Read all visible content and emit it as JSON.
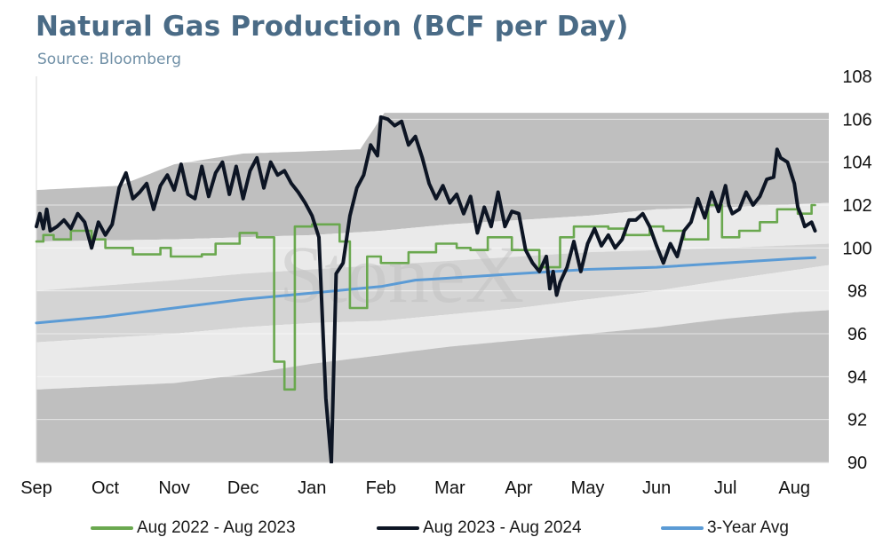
{
  "title": "Natural Gas Production (BCF per Day)",
  "subtitle": "Source: Bloomberg",
  "watermark": "StoneX",
  "colors": {
    "band_dark": "#a9a9a9",
    "band_mid": "#d4d4d4",
    "band_light": "#eaeaea",
    "series_2022": "#6aa84f",
    "series_2023": "#0d1524",
    "series_avg": "#5b9bd5"
  },
  "chart_data": {
    "type": "line",
    "title": "Natural Gas Production (BCF per Day)",
    "subtitle": "Source: Bloomberg",
    "xlabel": "",
    "ylabel": "",
    "x_range": [
      0,
      11.5
    ],
    "ylim": [
      90,
      108
    ],
    "y_ticks": [
      90,
      92,
      94,
      96,
      98,
      100,
      102,
      104,
      106,
      108
    ],
    "y_axis_side": "right",
    "x_ticks": [
      {
        "label": "Sep",
        "x": 0
      },
      {
        "label": "Oct",
        "x": 1
      },
      {
        "label": "Nov",
        "x": 2
      },
      {
        "label": "Dec",
        "x": 3
      },
      {
        "label": "Jan",
        "x": 4
      },
      {
        "label": "Feb",
        "x": 5
      },
      {
        "label": "Mar",
        "x": 6
      },
      {
        "label": "Apr",
        "x": 7
      },
      {
        "label": "May",
        "x": 8
      },
      {
        "label": "Jun",
        "x": 9
      },
      {
        "label": "Jul",
        "x": 10
      },
      {
        "label": "Aug",
        "x": 11
      }
    ],
    "grid": "horizontal",
    "legend_position": "bottom",
    "bands": {
      "note": "shaded 5-year range bands (max / upper / lower / min)",
      "max": [
        [
          0,
          102.7
        ],
        [
          1.2,
          102.9
        ],
        [
          2,
          103.9
        ],
        [
          3,
          104.4
        ],
        [
          3.9,
          104.5
        ],
        [
          4.7,
          104.6
        ],
        [
          5.05,
          106.3
        ],
        [
          11.5,
          106.3
        ]
      ],
      "upper": [
        [
          0,
          100.3
        ],
        [
          2,
          100.4
        ],
        [
          3,
          100.5
        ],
        [
          4,
          100.6
        ],
        [
          5,
          100.8
        ],
        [
          6,
          101.1
        ],
        [
          7,
          101.3
        ],
        [
          8,
          101.5
        ],
        [
          9,
          101.8
        ],
        [
          10,
          101.9
        ],
        [
          11.5,
          102.1
        ]
      ],
      "lower": [
        [
          0,
          98.0
        ],
        [
          2,
          98.5
        ],
        [
          3,
          98.8
        ],
        [
          4,
          99.0
        ],
        [
          5,
          99.2
        ],
        [
          6,
          99.4
        ],
        [
          7,
          99.6
        ],
        [
          8,
          99.8
        ],
        [
          9,
          99.9
        ],
        [
          10,
          100.0
        ],
        [
          11.5,
          100.2
        ]
      ],
      "inner_low": [
        [
          0,
          95.6
        ],
        [
          2,
          96.0
        ],
        [
          3,
          96.3
        ],
        [
          4,
          96.5
        ],
        [
          5,
          96.6
        ],
        [
          6,
          96.9
        ],
        [
          7,
          97.2
        ],
        [
          8,
          97.6
        ],
        [
          9,
          98.0
        ],
        [
          10,
          98.5
        ],
        [
          11.5,
          99.2
        ]
      ],
      "min": [
        [
          0,
          93.4
        ],
        [
          2,
          93.7
        ],
        [
          3,
          94.1
        ],
        [
          4,
          94.6
        ],
        [
          5,
          95.0
        ],
        [
          6,
          95.4
        ],
        [
          7,
          95.7
        ],
        [
          8,
          96.0
        ],
        [
          9,
          96.3
        ],
        [
          10,
          96.7
        ],
        [
          11,
          97.0
        ],
        [
          11.5,
          97.1
        ]
      ]
    },
    "series": [
      {
        "name": "Aug 2022 - Aug 2023",
        "step": true,
        "points": [
          [
            0,
            100.3
          ],
          [
            0.1,
            100.3
          ],
          [
            0.1,
            100.6
          ],
          [
            0.25,
            100.6
          ],
          [
            0.25,
            100.4
          ],
          [
            0.5,
            100.4
          ],
          [
            0.5,
            100.8
          ],
          [
            0.8,
            100.8
          ],
          [
            0.8,
            100.4
          ],
          [
            1.0,
            100.4
          ],
          [
            1.0,
            100.0
          ],
          [
            1.4,
            100.0
          ],
          [
            1.4,
            99.7
          ],
          [
            1.8,
            99.7
          ],
          [
            1.8,
            100.0
          ],
          [
            1.95,
            100.0
          ],
          [
            1.95,
            99.6
          ],
          [
            2.4,
            99.6
          ],
          [
            2.4,
            99.7
          ],
          [
            2.6,
            99.7
          ],
          [
            2.6,
            100.2
          ],
          [
            2.95,
            100.2
          ],
          [
            2.95,
            100.7
          ],
          [
            3.2,
            100.7
          ],
          [
            3.2,
            100.5
          ],
          [
            3.45,
            100.5
          ],
          [
            3.45,
            94.7
          ],
          [
            3.6,
            94.7
          ],
          [
            3.6,
            93.4
          ],
          [
            3.75,
            93.4
          ],
          [
            3.75,
            101.0
          ],
          [
            4.0,
            101.0
          ],
          [
            4.0,
            101.1
          ],
          [
            4.4,
            101.1
          ],
          [
            4.4,
            100.3
          ],
          [
            4.55,
            100.3
          ],
          [
            4.55,
            97.2
          ],
          [
            4.8,
            97.2
          ],
          [
            4.8,
            99.6
          ],
          [
            5.0,
            99.6
          ],
          [
            5.0,
            99.3
          ],
          [
            5.4,
            99.3
          ],
          [
            5.4,
            99.8
          ],
          [
            5.8,
            99.8
          ],
          [
            5.8,
            100.2
          ],
          [
            6.1,
            100.2
          ],
          [
            6.1,
            100.0
          ],
          [
            6.3,
            100.0
          ],
          [
            6.3,
            99.9
          ],
          [
            6.55,
            99.9
          ],
          [
            6.55,
            100.5
          ],
          [
            6.9,
            100.5
          ],
          [
            6.9,
            99.9
          ],
          [
            7.3,
            99.9
          ],
          [
            7.3,
            99.1
          ],
          [
            7.6,
            99.1
          ],
          [
            7.6,
            100.5
          ],
          [
            7.8,
            100.5
          ],
          [
            7.8,
            101.0
          ],
          [
            8.3,
            101.0
          ],
          [
            8.3,
            100.9
          ],
          [
            8.55,
            100.9
          ],
          [
            8.55,
            100.6
          ],
          [
            8.9,
            100.6
          ],
          [
            8.9,
            101.0
          ],
          [
            9.1,
            101.0
          ],
          [
            9.1,
            100.8
          ],
          [
            9.4,
            100.8
          ],
          [
            9.4,
            100.4
          ],
          [
            9.75,
            100.4
          ],
          [
            9.75,
            102.0
          ],
          [
            9.95,
            102.0
          ],
          [
            9.95,
            100.5
          ],
          [
            10.2,
            100.5
          ],
          [
            10.2,
            100.8
          ],
          [
            10.5,
            100.8
          ],
          [
            10.5,
            101.2
          ],
          [
            10.75,
            101.2
          ],
          [
            10.75,
            101.8
          ],
          [
            11.05,
            101.8
          ],
          [
            11.05,
            101.6
          ],
          [
            11.25,
            101.6
          ],
          [
            11.25,
            102.0
          ],
          [
            11.3,
            102.0
          ]
        ]
      },
      {
        "name": "Aug 2023 - Aug 2024",
        "step": false,
        "points": [
          [
            0,
            101.0
          ],
          [
            0.05,
            101.6
          ],
          [
            0.1,
            100.9
          ],
          [
            0.15,
            101.8
          ],
          [
            0.2,
            100.8
          ],
          [
            0.3,
            101.0
          ],
          [
            0.4,
            101.3
          ],
          [
            0.5,
            100.9
          ],
          [
            0.6,
            101.6
          ],
          [
            0.7,
            101.2
          ],
          [
            0.8,
            100.0
          ],
          [
            0.9,
            101.2
          ],
          [
            1.0,
            100.6
          ],
          [
            1.1,
            101.1
          ],
          [
            1.2,
            102.8
          ],
          [
            1.3,
            103.5
          ],
          [
            1.4,
            102.3
          ],
          [
            1.5,
            102.6
          ],
          [
            1.6,
            103.0
          ],
          [
            1.7,
            101.8
          ],
          [
            1.8,
            102.9
          ],
          [
            1.9,
            103.4
          ],
          [
            2.0,
            102.7
          ],
          [
            2.1,
            103.9
          ],
          [
            2.2,
            102.5
          ],
          [
            2.3,
            102.3
          ],
          [
            2.4,
            103.8
          ],
          [
            2.5,
            102.4
          ],
          [
            2.6,
            103.5
          ],
          [
            2.7,
            104.0
          ],
          [
            2.8,
            102.5
          ],
          [
            2.9,
            103.8
          ],
          [
            3.0,
            102.3
          ],
          [
            3.1,
            103.6
          ],
          [
            3.2,
            104.2
          ],
          [
            3.3,
            102.8
          ],
          [
            3.4,
            104.0
          ],
          [
            3.5,
            103.4
          ],
          [
            3.6,
            103.6
          ],
          [
            3.7,
            103.0
          ],
          [
            3.8,
            102.6
          ],
          [
            3.9,
            102.1
          ],
          [
            4.0,
            101.5
          ],
          [
            4.1,
            100.5
          ],
          [
            4.2,
            93.0
          ],
          [
            4.28,
            90.0
          ],
          [
            4.35,
            98.8
          ],
          [
            4.45,
            99.3
          ],
          [
            4.55,
            101.5
          ],
          [
            4.65,
            102.8
          ],
          [
            4.75,
            103.4
          ],
          [
            4.85,
            104.8
          ],
          [
            4.95,
            104.3
          ],
          [
            5.0,
            106.1
          ],
          [
            5.1,
            106.0
          ],
          [
            5.2,
            105.7
          ],
          [
            5.3,
            105.9
          ],
          [
            5.4,
            104.8
          ],
          [
            5.5,
            105.2
          ],
          [
            5.6,
            104.2
          ],
          [
            5.7,
            103.0
          ],
          [
            5.8,
            102.3
          ],
          [
            5.9,
            102.9
          ],
          [
            6.0,
            102.1
          ],
          [
            6.1,
            102.5
          ],
          [
            6.2,
            101.6
          ],
          [
            6.3,
            102.4
          ],
          [
            6.4,
            100.7
          ],
          [
            6.5,
            101.9
          ],
          [
            6.6,
            101.0
          ],
          [
            6.7,
            102.6
          ],
          [
            6.8,
            101.0
          ],
          [
            6.9,
            101.7
          ],
          [
            7.0,
            101.6
          ],
          [
            7.1,
            99.9
          ],
          [
            7.2,
            99.3
          ],
          [
            7.3,
            98.9
          ],
          [
            7.4,
            99.6
          ],
          [
            7.45,
            98.1
          ],
          [
            7.5,
            98.9
          ],
          [
            7.55,
            97.8
          ],
          [
            7.6,
            98.4
          ],
          [
            7.7,
            99.1
          ],
          [
            7.8,
            100.3
          ],
          [
            7.9,
            98.9
          ],
          [
            8.0,
            100.2
          ],
          [
            8.1,
            100.9
          ],
          [
            8.2,
            100.1
          ],
          [
            8.3,
            100.6
          ],
          [
            8.4,
            100.0
          ],
          [
            8.5,
            100.4
          ],
          [
            8.6,
            101.3
          ],
          [
            8.7,
            101.3
          ],
          [
            8.8,
            101.6
          ],
          [
            8.9,
            101.0
          ],
          [
            9.0,
            100.1
          ],
          [
            9.1,
            99.3
          ],
          [
            9.2,
            100.2
          ],
          [
            9.3,
            99.6
          ],
          [
            9.4,
            100.8
          ],
          [
            9.5,
            101.2
          ],
          [
            9.6,
            102.3
          ],
          [
            9.7,
            101.4
          ],
          [
            9.8,
            102.6
          ],
          [
            9.9,
            101.7
          ],
          [
            10.0,
            102.9
          ],
          [
            10.05,
            102.0
          ],
          [
            10.1,
            101.6
          ],
          [
            10.2,
            101.8
          ],
          [
            10.3,
            102.6
          ],
          [
            10.4,
            102.0
          ],
          [
            10.5,
            102.4
          ],
          [
            10.6,
            103.2
          ],
          [
            10.7,
            103.3
          ],
          [
            10.75,
            104.6
          ],
          [
            10.8,
            104.2
          ],
          [
            10.9,
            104.0
          ],
          [
            11.0,
            103.0
          ],
          [
            11.05,
            101.9
          ],
          [
            11.1,
            101.5
          ],
          [
            11.15,
            101.0
          ],
          [
            11.25,
            101.2
          ],
          [
            11.3,
            100.8
          ]
        ]
      },
      {
        "name": "3-Year Avg",
        "step": false,
        "points": [
          [
            0,
            96.5
          ],
          [
            1,
            96.8
          ],
          [
            2,
            97.2
          ],
          [
            3,
            97.6
          ],
          [
            4,
            97.9
          ],
          [
            5,
            98.2
          ],
          [
            5.5,
            98.5
          ],
          [
            6,
            98.6
          ],
          [
            7,
            98.8
          ],
          [
            8,
            99.0
          ],
          [
            9,
            99.1
          ],
          [
            10,
            99.3
          ],
          [
            11,
            99.5
          ],
          [
            11.3,
            99.55
          ]
        ]
      }
    ]
  },
  "legend": [
    {
      "label": "Aug 2022 - Aug 2023"
    },
    {
      "label": "Aug 2023 - Aug 2024"
    },
    {
      "label": "3-Year Avg"
    }
  ]
}
